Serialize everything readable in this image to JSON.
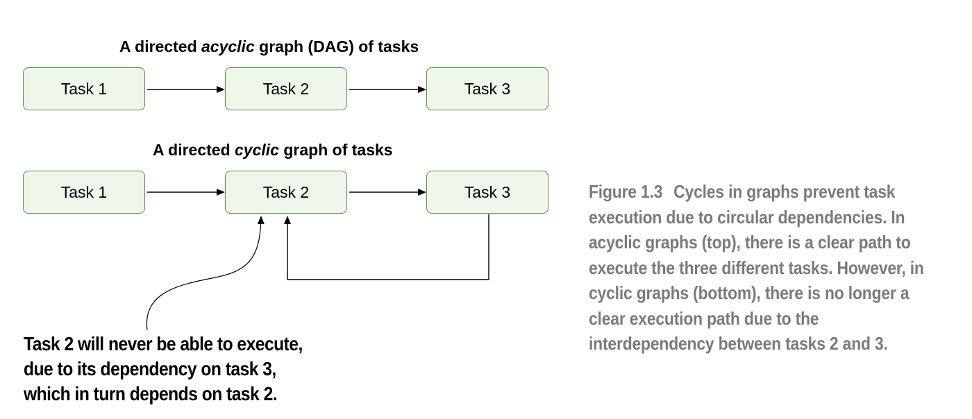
{
  "top": {
    "title_pre": "A directed ",
    "title_em": "acyclic",
    "title_post": " graph (DAG) of tasks",
    "tasks": [
      "Task 1",
      "Task 2",
      "Task 3"
    ]
  },
  "bottom": {
    "title_pre": "A directed ",
    "title_em": "cyclic",
    "title_post": " graph of tasks",
    "tasks": [
      "Task 1",
      "Task 2",
      "Task 3"
    ]
  },
  "note": {
    "line1": "Task 2 will never be able to execute,",
    "line2": "due to its dependency on task 3,",
    "line3": "which in turn depends on task 2."
  },
  "caption": {
    "label": "Figure 1.3",
    "text": "Cycles in graphs prevent task execution due to circular dependencies. In acyclic graphs (top), there is a clear path to execute the three different tasks. However, in cyclic graphs (bottom), there is no longer a clear execution path due to the interdependency between tasks 2 and 3."
  }
}
